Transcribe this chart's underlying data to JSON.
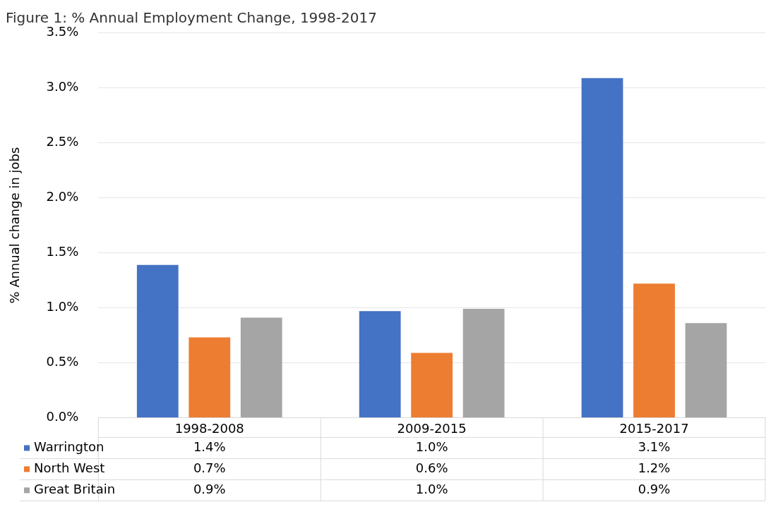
{
  "chart_data": {
    "type": "bar",
    "title": "Figure 1: % Annual Employment Change, 1998-2017",
    "ylabel": "% Annual change in jobs",
    "categories": [
      "1998-2008",
      "2009-2015",
      "2015-2017"
    ],
    "series": [
      {
        "name": "Warrington",
        "color": "#4472c4",
        "values": [
          1.39,
          0.97,
          3.09
        ],
        "value_labels": [
          "1.4%",
          "1.0%",
          "3.1%"
        ]
      },
      {
        "name": "North West",
        "color": "#ed7d31",
        "values": [
          0.73,
          0.59,
          1.22
        ],
        "value_labels": [
          "0.7%",
          "0.6%",
          "1.2%"
        ]
      },
      {
        "name": "Great Britain",
        "color": "#a5a5a5",
        "values": [
          0.91,
          0.99,
          0.86
        ],
        "value_labels": [
          "0.9%",
          "1.0%",
          "0.9%"
        ]
      }
    ],
    "ylim": [
      0,
      3.5
    ],
    "yticks": [
      {
        "value": 0,
        "label": "0.0%"
      },
      {
        "value": 0.5,
        "label": "0.5%"
      },
      {
        "value": 1,
        "label": "1.0%"
      },
      {
        "value": 1.5,
        "label": "1.5%"
      },
      {
        "value": 2,
        "label": "2.0%"
      },
      {
        "value": 2.5,
        "label": "2.5%"
      },
      {
        "value": 3,
        "label": "3.0%"
      },
      {
        "value": 3.5,
        "label": "3.5%"
      }
    ],
    "grid": "y",
    "legend": "bottom"
  }
}
